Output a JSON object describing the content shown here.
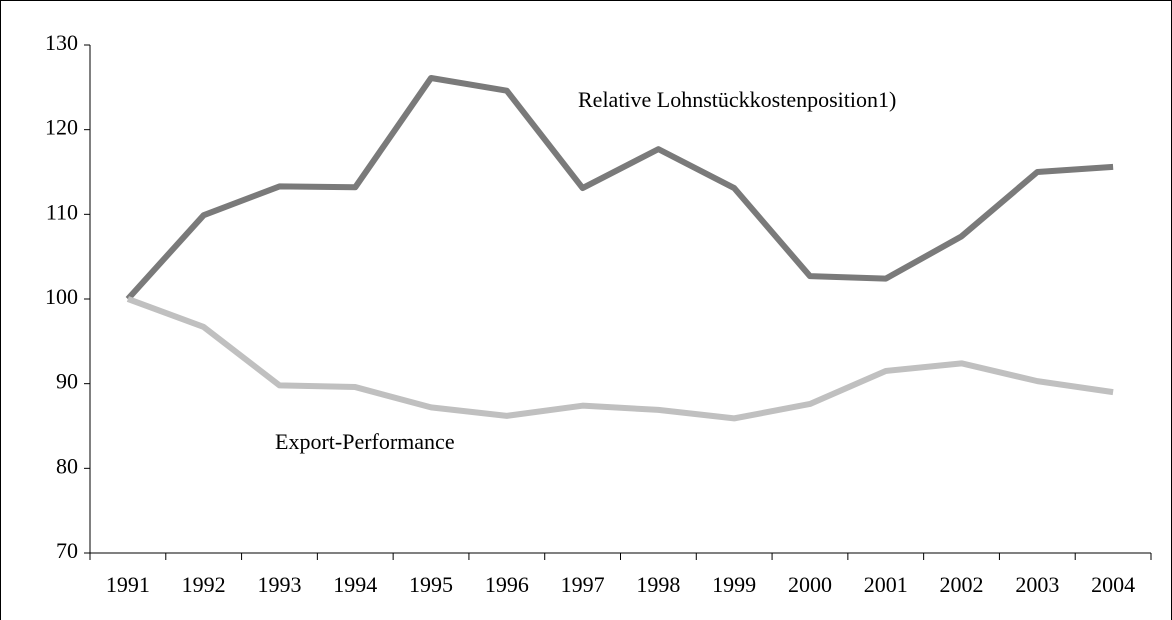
{
  "chart_data": {
    "type": "line",
    "categories": [
      "1991",
      "1992",
      "1993",
      "1994",
      "1995",
      "1996",
      "1997",
      "1998",
      "1999",
      "2000",
      "2001",
      "2002",
      "2003",
      "2004"
    ],
    "series": [
      {
        "name": "Relative Lohnstückkostenposition1)",
        "color": "#7a7a7a",
        "values": [
          100,
          109.9,
          113.3,
          113.2,
          126.1,
          124.6,
          113.1,
          117.7,
          113.1,
          102.7,
          102.4,
          107.4,
          115.0,
          115.6
        ]
      },
      {
        "name": "Export-Performance",
        "color": "#c0c0c0",
        "values": [
          100,
          96.7,
          89.8,
          89.6,
          87.2,
          86.2,
          87.4,
          86.9,
          85.9,
          87.6,
          91.5,
          92.4,
          90.3,
          89.0
        ]
      }
    ],
    "ylim": [
      70,
      130
    ],
    "yticks": [
      70,
      80,
      90,
      100,
      110,
      120,
      130
    ],
    "grid": false
  }
}
